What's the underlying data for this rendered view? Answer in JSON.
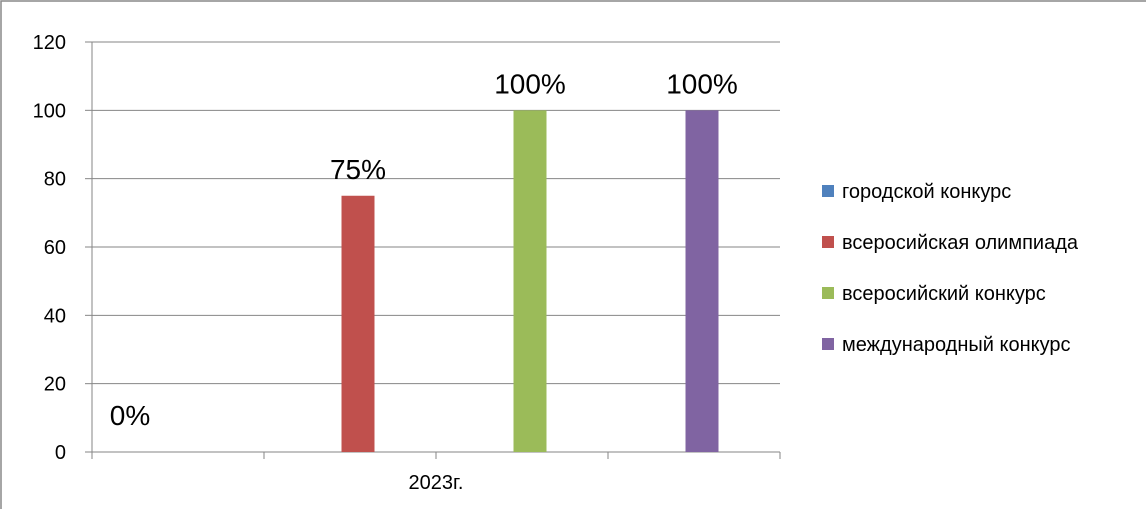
{
  "chart_data": {
    "type": "bar",
    "categories": [
      "2023г."
    ],
    "series": [
      {
        "name": "городской конкурс",
        "values": [
          0
        ],
        "label": "0%",
        "color": "#4f81bd"
      },
      {
        "name": "всеросийская олимпиада",
        "values": [
          75
        ],
        "label": "75%",
        "color": "#c0504d"
      },
      {
        "name": "всеросийский конкурс",
        "values": [
          100
        ],
        "label": "100%",
        "color": "#9bbb59"
      },
      {
        "name": "международный конкурс",
        "values": [
          100
        ],
        "label": "100%",
        "color": "#8064a2"
      }
    ],
    "ylim": [
      0,
      120
    ],
    "yticks": [
      0,
      20,
      40,
      60,
      80,
      100,
      120
    ],
    "grid": true,
    "legend_position": "right"
  }
}
